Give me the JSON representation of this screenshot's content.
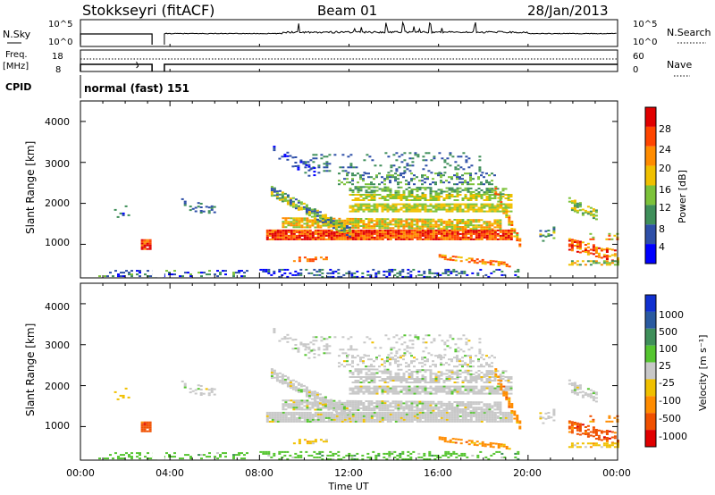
{
  "header": {
    "station": "Stokkseyri (fitACF)",
    "beam": "Beam 01",
    "date": "28/Jan/2013"
  },
  "top_panels": {
    "nsky_label": "N.Sky",
    "nsearch_label": "N.Search",
    "noise_ticks_left": [
      "10^5",
      "10^0"
    ],
    "noise_ticks_right": [
      "10^5",
      "10^0"
    ],
    "freq_label_1": "Freq.",
    "freq_label_2": "[MHz]",
    "freq_ticks": [
      "18",
      "8"
    ],
    "nave_label": "Nave",
    "nave_ticks": [
      "60",
      "0"
    ],
    "cpid_label": "CPID",
    "cpid_value": "normal (fast) 151"
  },
  "colors": {
    "power": [
      "#0000ff",
      "#2e4fa8",
      "#3f8f5a",
      "#7cc23a",
      "#f0c000",
      "#ff8c00",
      "#ff4500",
      "#e00000"
    ],
    "velocity": [
      "#1030d0",
      "#2a5aa0",
      "#3f8f5a",
      "#55c530",
      "#c8c8c8",
      "#f0c000",
      "#ff8c00",
      "#f05000",
      "#e00000"
    ]
  },
  "chart_data": [
    {
      "type": "heatmap",
      "name": "power",
      "ylabel": "Slant Range [km]",
      "ylim": [
        180,
        4500
      ],
      "xlim": [
        "00:00",
        "24:00"
      ],
      "yticks": [
        "1000",
        "2000",
        "3000",
        "4000"
      ],
      "colorbar_label": "Power [dB]",
      "colorbar_ticks": [
        "4",
        "8",
        "12",
        "16",
        "20",
        "24",
        "28"
      ],
      "data_gap": [
        "03:15",
        "03:45"
      ]
    },
    {
      "type": "heatmap",
      "name": "velocity",
      "ylabel": "Slant Range [km]",
      "ylim": [
        180,
        4500
      ],
      "xlim": [
        "00:00",
        "24:00"
      ],
      "yticks": [
        "1000",
        "2000",
        "3000",
        "4000"
      ],
      "colorbar_label": "Velocity [m s⁻¹]",
      "colorbar_ticks": [
        "1000",
        "500",
        "100",
        "25",
        "-25",
        "-100",
        "-500",
        "-1000"
      ],
      "xticks": [
        "00:00",
        "04:00",
        "08:00",
        "12:00",
        "16:00",
        "20:00",
        "00:00"
      ],
      "xlabel": "Time UT",
      "data_gap": [
        "03:15",
        "03:45"
      ]
    }
  ]
}
